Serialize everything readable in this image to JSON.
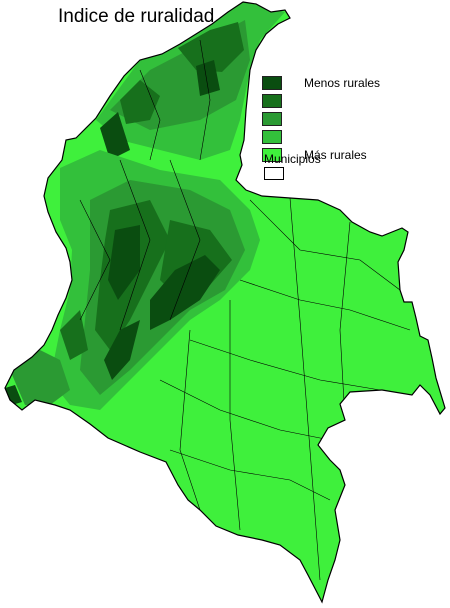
{
  "title": "Indice de ruralidad.",
  "legend": {
    "items": [
      {
        "label": "Menos rurales",
        "color": "#0a4d10"
      },
      {
        "label": "",
        "color": "#17701c"
      },
      {
        "label": "",
        "color": "#2b9a33"
      },
      {
        "label": "",
        "color": "#33c03b"
      },
      {
        "label": "Más rurales",
        "color": "#3ff03c"
      }
    ],
    "boundary_label": "Municipios"
  },
  "map_colors": {
    "outline": "#000000",
    "background": "#ffffff"
  }
}
